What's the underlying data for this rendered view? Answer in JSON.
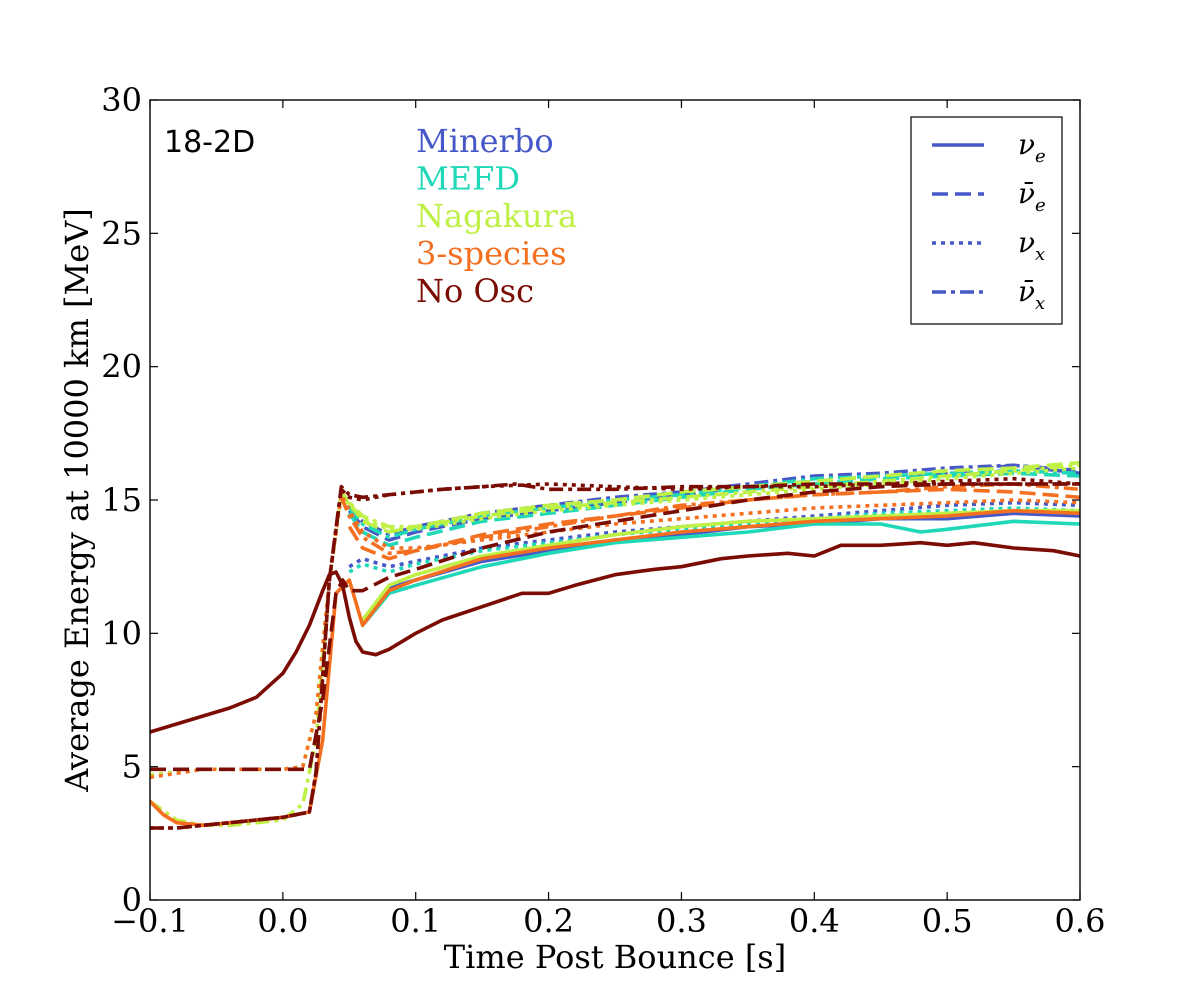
{
  "chart_data": {
    "type": "line",
    "panel_label": "18-2D",
    "xlabel": "Time Post Bounce [s]",
    "ylabel": "Average Energy at 10000 km [MeV]",
    "xlim": [
      -0.1,
      0.6
    ],
    "ylim": [
      0,
      30
    ],
    "xticks": [
      -0.1,
      0.0,
      0.1,
      0.2,
      0.3,
      0.4,
      0.5,
      0.6
    ],
    "xtick_labels": [
      "−0.1",
      "0.0",
      "0.1",
      "0.2",
      "0.3",
      "0.4",
      "0.5",
      "0.6"
    ],
    "yticks": [
      0,
      5,
      10,
      15,
      20,
      25,
      30
    ],
    "ytick_labels": [
      "0",
      "5",
      "10",
      "15",
      "20",
      "25",
      "30"
    ],
    "models": [
      {
        "key": "minerbo",
        "name": "Minerbo",
        "color": "#4658c8"
      },
      {
        "key": "mefd",
        "name": "MEFD",
        "color": "#1ed8b8"
      },
      {
        "key": "nagakura",
        "name": "Nagakura",
        "color": "#bef045"
      },
      {
        "key": "three",
        "name": "3-species",
        "color": "#f47020"
      },
      {
        "key": "noosc",
        "name": "No Osc",
        "color": "#7a0c04"
      }
    ],
    "legend": {
      "position": "upper right",
      "entries": [
        {
          "base": "ν",
          "sub": "e",
          "bar": false,
          "style": "solid"
        },
        {
          "base": "ν̄",
          "sub": "e",
          "bar": true,
          "style": "dashed"
        },
        {
          "base": "ν",
          "sub": "x",
          "bar": false,
          "style": "dotted"
        },
        {
          "base": "ν̄",
          "sub": "x",
          "bar": true,
          "style": "dashdot"
        }
      ]
    },
    "series": [
      {
        "model": "noosc",
        "flavor": "nu_e",
        "style": "solid",
        "x": [
          -0.1,
          -0.08,
          -0.06,
          -0.04,
          -0.02,
          0.0,
          0.01,
          0.02,
          0.03,
          0.035,
          0.04,
          0.045,
          0.05,
          0.055,
          0.06,
          0.07,
          0.08,
          0.1,
          0.12,
          0.15,
          0.18,
          0.2,
          0.22,
          0.25,
          0.28,
          0.3,
          0.33,
          0.35,
          0.38,
          0.4,
          0.42,
          0.45,
          0.48,
          0.5,
          0.52,
          0.55,
          0.58,
          0.6
        ],
        "y": [
          6.3,
          6.6,
          6.9,
          7.2,
          7.6,
          8.5,
          9.3,
          10.3,
          11.6,
          12.2,
          12.3,
          11.8,
          10.6,
          9.7,
          9.3,
          9.2,
          9.4,
          10.0,
          10.5,
          11.0,
          11.5,
          11.5,
          11.8,
          12.2,
          12.4,
          12.5,
          12.8,
          12.9,
          13.0,
          12.9,
          13.3,
          13.3,
          13.4,
          13.3,
          13.4,
          13.2,
          13.1,
          12.9
        ]
      },
      {
        "model": "noosc",
        "flavor": "nubar_e",
        "style": "dashed",
        "x": [
          -0.1,
          0.0,
          0.02,
          0.03,
          0.04,
          0.045,
          0.05,
          0.06,
          0.08,
          0.1,
          0.15,
          0.2,
          0.25,
          0.3,
          0.35,
          0.4,
          0.45,
          0.5,
          0.55,
          0.6
        ],
        "y": [
          4.9,
          4.9,
          4.9,
          7.5,
          11.5,
          12.0,
          11.6,
          11.6,
          12.1,
          12.4,
          13.2,
          13.8,
          14.2,
          14.6,
          15.0,
          15.3,
          15.5,
          15.6,
          15.6,
          15.6
        ]
      },
      {
        "model": "noosc",
        "flavor": "nu_x",
        "style": "dotted",
        "x": [
          -0.1,
          -0.09,
          -0.08,
          -0.06,
          -0.04,
          -0.02,
          0.0,
          0.02,
          0.025,
          0.035,
          0.044,
          0.05,
          0.06,
          0.08,
          0.1,
          0.12,
          0.15,
          0.2,
          0.25,
          0.3,
          0.35,
          0.4,
          0.45,
          0.5,
          0.55,
          0.6
        ],
        "y": [
          2.7,
          2.7,
          2.7,
          2.8,
          2.9,
          3.0,
          3.1,
          3.3,
          4.8,
          12.0,
          15.4,
          15.1,
          15.0,
          15.2,
          15.3,
          15.4,
          15.5,
          15.6,
          15.5,
          15.4,
          15.5,
          15.5,
          15.6,
          15.7,
          15.8,
          15.6
        ]
      },
      {
        "model": "noosc",
        "flavor": "nubar_x",
        "style": "dashdot",
        "x": [
          -0.1,
          -0.09,
          -0.08,
          -0.06,
          -0.04,
          -0.02,
          0.0,
          0.02,
          0.025,
          0.035,
          0.044,
          0.05,
          0.06,
          0.08,
          0.1,
          0.12,
          0.15,
          0.175,
          0.2,
          0.25,
          0.3,
          0.35,
          0.4,
          0.45,
          0.5,
          0.55,
          0.6
        ],
        "y": [
          2.7,
          2.7,
          2.7,
          2.8,
          2.9,
          3.0,
          3.1,
          3.3,
          4.8,
          12.0,
          15.5,
          15.2,
          15.1,
          15.2,
          15.3,
          15.4,
          15.5,
          15.6,
          15.4,
          15.4,
          15.5,
          15.5,
          15.6,
          15.6,
          15.6,
          15.6,
          15.6
        ]
      },
      {
        "model": "minerbo",
        "flavor": "nu_e",
        "style": "solid",
        "x": [
          0.06,
          0.08,
          0.1,
          0.15,
          0.2,
          0.25,
          0.3,
          0.35,
          0.4,
          0.45,
          0.5,
          0.55,
          0.6
        ],
        "y": [
          10.4,
          11.7,
          12.0,
          12.7,
          13.1,
          13.5,
          13.7,
          14.0,
          14.1,
          14.3,
          14.3,
          14.5,
          14.4
        ]
      },
      {
        "model": "minerbo",
        "flavor": "nubar_e",
        "style": "dashed",
        "x": [
          0.05,
          0.06,
          0.08,
          0.1,
          0.15,
          0.2,
          0.25,
          0.3,
          0.35,
          0.4,
          0.45,
          0.5,
          0.55,
          0.6
        ],
        "y": [
          14.6,
          14.0,
          13.5,
          13.8,
          14.3,
          14.6,
          14.9,
          15.2,
          15.5,
          15.7,
          15.9,
          16.0,
          16.3,
          16.0
        ]
      },
      {
        "model": "minerbo",
        "flavor": "nu_x",
        "style": "dotted",
        "x": [
          0.05,
          0.06,
          0.08,
          0.1,
          0.15,
          0.2,
          0.25,
          0.3,
          0.35,
          0.4,
          0.45,
          0.5,
          0.55,
          0.6
        ],
        "y": [
          12.5,
          12.8,
          12.5,
          12.7,
          13.2,
          13.5,
          13.8,
          14.0,
          14.2,
          14.4,
          14.6,
          14.8,
          14.9,
          14.8
        ]
      },
      {
        "model": "minerbo",
        "flavor": "nubar_x",
        "style": "dashdot",
        "x": [
          0.05,
          0.06,
          0.08,
          0.1,
          0.15,
          0.2,
          0.25,
          0.3,
          0.35,
          0.4,
          0.45,
          0.5,
          0.55,
          0.6
        ],
        "y": [
          14.8,
          14.2,
          13.7,
          14.0,
          14.5,
          14.8,
          15.1,
          15.3,
          15.6,
          15.9,
          16.0,
          16.2,
          16.3,
          16.1
        ]
      },
      {
        "model": "mefd",
        "flavor": "nu_e",
        "style": "solid",
        "x": [
          0.06,
          0.08,
          0.1,
          0.15,
          0.2,
          0.25,
          0.3,
          0.35,
          0.4,
          0.45,
          0.48,
          0.5,
          0.55,
          0.6
        ],
        "y": [
          10.3,
          11.5,
          11.8,
          12.5,
          13.0,
          13.4,
          13.6,
          13.8,
          14.1,
          14.1,
          13.8,
          13.9,
          14.2,
          14.1
        ]
      },
      {
        "model": "mefd",
        "flavor": "nubar_e",
        "style": "dashed",
        "x": [
          0.05,
          0.06,
          0.08,
          0.1,
          0.15,
          0.2,
          0.25,
          0.3,
          0.35,
          0.4,
          0.45,
          0.5,
          0.55,
          0.6
        ],
        "y": [
          14.5,
          13.8,
          13.3,
          13.6,
          14.2,
          14.5,
          14.8,
          15.1,
          15.4,
          15.6,
          15.8,
          15.9,
          16.0,
          15.9
        ]
      },
      {
        "model": "mefd",
        "flavor": "nu_x",
        "style": "dotted",
        "x": [
          0.05,
          0.06,
          0.08,
          0.1,
          0.15,
          0.2,
          0.25,
          0.3,
          0.35,
          0.4,
          0.45,
          0.5,
          0.55,
          0.6
        ],
        "y": [
          12.3,
          12.6,
          12.3,
          12.6,
          13.1,
          13.4,
          13.7,
          13.9,
          14.1,
          14.3,
          14.5,
          14.6,
          14.7,
          14.6
        ]
      },
      {
        "model": "mefd",
        "flavor": "nubar_x",
        "style": "dashdot",
        "x": [
          0.05,
          0.06,
          0.08,
          0.1,
          0.15,
          0.2,
          0.25,
          0.3,
          0.35,
          0.4,
          0.45,
          0.5,
          0.55,
          0.6
        ],
        "y": [
          14.7,
          14.1,
          13.6,
          13.9,
          14.4,
          14.7,
          15.0,
          15.2,
          15.5,
          15.8,
          15.9,
          16.0,
          16.1,
          16.0
        ]
      },
      {
        "model": "nagakura",
        "flavor": "nu_e",
        "style": "solid",
        "x": [
          0.06,
          0.08,
          0.1,
          0.15,
          0.2,
          0.25,
          0.3,
          0.35,
          0.4,
          0.45,
          0.5,
          0.55,
          0.6
        ],
        "y": [
          10.5,
          11.8,
          12.2,
          12.9,
          13.3,
          13.7,
          14.0,
          14.2,
          14.3,
          14.4,
          14.5,
          14.6,
          14.6
        ]
      },
      {
        "model": "nagakura",
        "flavor": "nubar_e",
        "style": "dashed",
        "x": [
          0.05,
          0.06,
          0.08,
          0.1,
          0.15,
          0.2,
          0.25,
          0.3,
          0.35,
          0.4,
          0.45,
          0.5,
          0.55,
          0.6
        ],
        "y": [
          14.9,
          14.2,
          13.8,
          14.0,
          14.5,
          14.8,
          15.0,
          15.3,
          15.5,
          15.7,
          15.9,
          16.1,
          16.2,
          16.4
        ]
      },
      {
        "model": "nagakura",
        "flavor": "nu_x",
        "style": "dotted",
        "x": [
          -0.1,
          -0.06,
          -0.02,
          0.0,
          0.015,
          0.025,
          0.035,
          0.044,
          0.05,
          0.06,
          0.08,
          0.1,
          0.15,
          0.2,
          0.25,
          0.3,
          0.35,
          0.4,
          0.45,
          0.5,
          0.55,
          0.6
        ],
        "y": [
          4.7,
          4.9,
          4.9,
          4.9,
          5.0,
          7.0,
          12.0,
          15.3,
          14.8,
          14.3,
          13.9,
          13.9,
          14.3,
          14.6,
          14.8,
          15.0,
          15.2,
          15.4,
          15.6,
          15.8,
          16.0,
          16.2
        ]
      },
      {
        "model": "nagakura",
        "flavor": "nubar_x",
        "style": "dashdot",
        "x": [
          -0.1,
          -0.08,
          -0.06,
          -0.04,
          -0.02,
          0.0,
          0.015,
          0.025,
          0.035,
          0.044,
          0.05,
          0.06,
          0.08,
          0.1,
          0.15,
          0.2,
          0.25,
          0.3,
          0.35,
          0.4,
          0.45,
          0.5,
          0.55,
          0.6
        ],
        "y": [
          3.7,
          3.0,
          2.8,
          2.8,
          2.9,
          3.0,
          3.6,
          6.0,
          12.0,
          15.3,
          14.9,
          14.4,
          14.0,
          14.0,
          14.4,
          14.7,
          14.9,
          15.1,
          15.3,
          15.5,
          15.7,
          15.9,
          16.1,
          16.3
        ]
      },
      {
        "model": "three",
        "flavor": "nu_e",
        "style": "solid",
        "x": [
          -0.1,
          -0.09,
          -0.08,
          -0.06,
          -0.04,
          -0.02,
          0.0,
          0.02,
          0.03,
          0.04,
          0.05,
          0.06,
          0.08,
          0.1,
          0.15,
          0.2,
          0.25,
          0.3,
          0.35,
          0.4,
          0.45,
          0.5,
          0.55,
          0.6
        ],
        "y": [
          3.7,
          3.2,
          2.9,
          2.8,
          2.9,
          3.0,
          3.1,
          3.3,
          6.0,
          11.5,
          12.0,
          10.3,
          11.6,
          12.0,
          12.8,
          13.2,
          13.5,
          13.8,
          14.0,
          14.2,
          14.3,
          14.4,
          14.6,
          14.5
        ]
      },
      {
        "model": "three",
        "flavor": "nubar_e",
        "style": "dashed",
        "x": [
          0.05,
          0.06,
          0.08,
          0.1,
          0.15,
          0.2,
          0.25,
          0.3,
          0.35,
          0.4,
          0.45,
          0.5,
          0.55,
          0.6
        ],
        "y": [
          14.0,
          13.2,
          12.8,
          13.1,
          13.7,
          14.1,
          14.4,
          14.7,
          15.0,
          15.2,
          15.3,
          15.4,
          15.3,
          15.1
        ]
      },
      {
        "model": "three",
        "flavor": "nu_x",
        "style": "dotted",
        "x": [
          -0.1,
          -0.06,
          -0.02,
          0.0,
          0.015,
          0.025,
          0.035,
          0.044,
          0.05,
          0.06,
          0.08,
          0.1,
          0.15,
          0.2,
          0.25,
          0.3,
          0.35,
          0.4,
          0.45,
          0.5,
          0.55,
          0.6
        ],
        "y": [
          4.6,
          4.9,
          4.9,
          4.9,
          5.0,
          7.0,
          12.0,
          15.2,
          14.6,
          13.8,
          13.2,
          13.2,
          13.5,
          13.8,
          14.1,
          14.3,
          14.5,
          14.7,
          14.8,
          14.9,
          15.0,
          14.9
        ]
      },
      {
        "model": "three",
        "flavor": "nubar_x",
        "style": "dashdot",
        "x": [
          0.044,
          0.05,
          0.06,
          0.08,
          0.1,
          0.15,
          0.2,
          0.25,
          0.3,
          0.35,
          0.4,
          0.45,
          0.5,
          0.55,
          0.6
        ],
        "y": [
          15.1,
          14.4,
          13.6,
          13.0,
          13.1,
          13.6,
          14.0,
          14.4,
          14.8,
          15.0,
          15.2,
          15.3,
          15.5,
          15.6,
          15.4
        ]
      }
    ]
  }
}
